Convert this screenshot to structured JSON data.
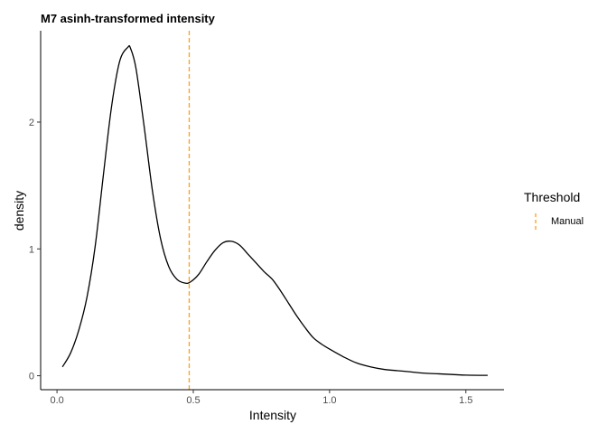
{
  "chart_data": {
    "type": "line",
    "title": "M7 asinh-transformed intensity",
    "xlabel": "Intensity",
    "ylabel": "density",
    "xlim": [
      -0.06,
      1.64
    ],
    "ylim": [
      -0.11,
      2.72
    ],
    "x_ticks": [
      0.0,
      0.5,
      1.0,
      1.5
    ],
    "x_tick_labels": [
      "0.0",
      "0.5",
      "1.0",
      "1.5"
    ],
    "y_ticks": [
      0,
      1,
      2
    ],
    "y_tick_labels": [
      "0",
      "1",
      "2"
    ],
    "grid": false,
    "series": [
      {
        "color": "#000000",
        "x": [
          0.02,
          0.05,
          0.08,
          0.11,
          0.14,
          0.17,
          0.2,
          0.23,
          0.26,
          0.27,
          0.29,
          0.32,
          0.35,
          0.38,
          0.41,
          0.44,
          0.47,
          0.49,
          0.52,
          0.55,
          0.58,
          0.61,
          0.64,
          0.67,
          0.7,
          0.73,
          0.76,
          0.79,
          0.82,
          0.85,
          0.88,
          0.91,
          0.94,
          0.97,
          1.0,
          1.05,
          1.1,
          1.15,
          1.2,
          1.25,
          1.3,
          1.35,
          1.4,
          1.45,
          1.5,
          1.58
        ],
        "y": [
          0.07,
          0.18,
          0.36,
          0.62,
          1.02,
          1.58,
          2.12,
          2.48,
          2.59,
          2.58,
          2.42,
          1.96,
          1.46,
          1.08,
          0.86,
          0.76,
          0.73,
          0.74,
          0.8,
          0.9,
          0.99,
          1.05,
          1.06,
          1.03,
          0.96,
          0.89,
          0.82,
          0.76,
          0.67,
          0.57,
          0.47,
          0.38,
          0.3,
          0.25,
          0.21,
          0.15,
          0.1,
          0.07,
          0.05,
          0.04,
          0.03,
          0.02,
          0.015,
          0.01,
          0.005,
          0.003
        ]
      }
    ],
    "vlines": [
      {
        "x": 0.485,
        "color": "#ff9e1a",
        "linetype": "dashed",
        "legend": "Manual"
      }
    ],
    "legend": {
      "title": "Threshold",
      "position": "right",
      "items": [
        {
          "label": "Manual",
          "color": "#ff9e1a",
          "linetype": "dashed"
        }
      ]
    }
  }
}
